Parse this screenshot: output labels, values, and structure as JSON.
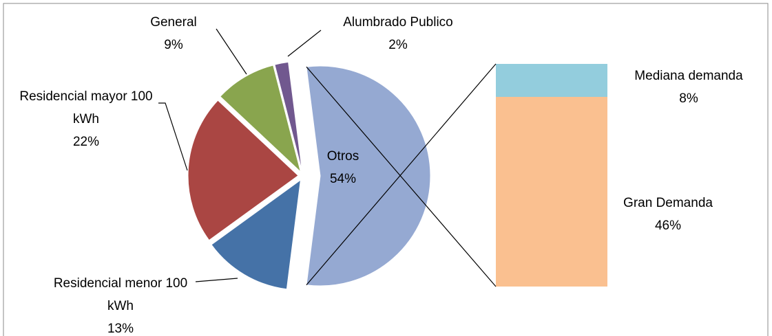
{
  "chart_data": {
    "type": "pie-of-bar",
    "categories": [
      "Residencial menor 100 kWh",
      "Residencial mayor 100 kWh",
      "General",
      "Alumbrado Publico",
      "Otros"
    ],
    "values": [
      13,
      22,
      9,
      2,
      54
    ],
    "value_labels": [
      "13%",
      "22%",
      "9%",
      "2%",
      "54%"
    ],
    "colors": [
      "#4572a7",
      "#aa4643",
      "#89a54e",
      "#71588f",
      "#95a9d2"
    ],
    "bar": {
      "categories": [
        "Mediana demanda",
        "Gran Demanda"
      ],
      "values": [
        8,
        46
      ],
      "value_labels": [
        "8%",
        "46%"
      ],
      "colors": [
        "#93cddd",
        "#fac090"
      ]
    }
  }
}
